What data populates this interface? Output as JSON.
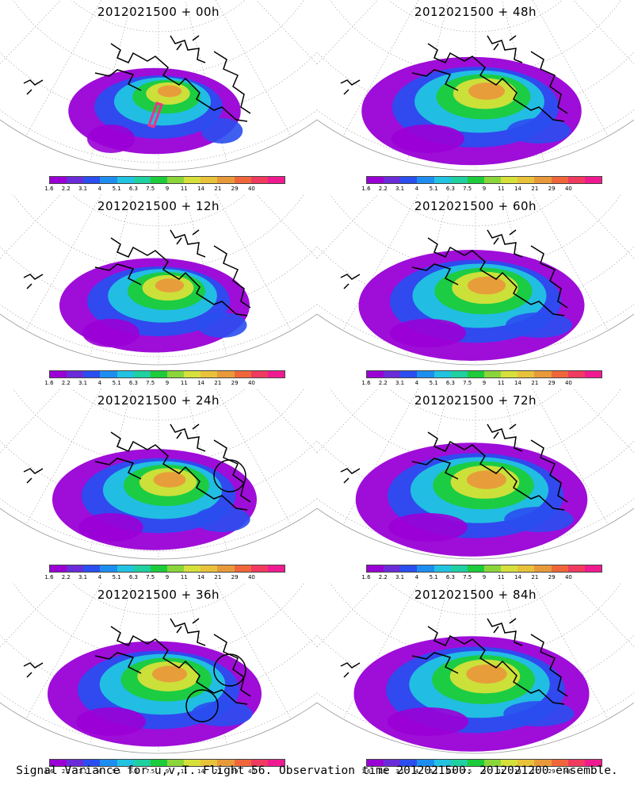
{
  "panels": [
    {
      "title": "2012021500 + 00h",
      "intensity": 0.35,
      "markers": [
        "flight-track"
      ]
    },
    {
      "title": "2012021500 + 48h",
      "intensity": 0.75,
      "markers": []
    },
    {
      "title": "2012021500 + 12h",
      "intensity": 0.5,
      "markers": []
    },
    {
      "title": "2012021500 + 60h",
      "intensity": 0.8,
      "markers": []
    },
    {
      "title": "2012021500 + 24h",
      "intensity": 0.62,
      "markers": [
        "circle"
      ]
    },
    {
      "title": "2012021500 + 72h",
      "intensity": 0.85,
      "markers": []
    },
    {
      "title": "2012021500 + 36h",
      "intensity": 0.7,
      "markers": [
        "circle",
        "circle"
      ]
    },
    {
      "title": "2012021500 + 84h",
      "intensity": 0.88,
      "markers": []
    }
  ],
  "colorbar": {
    "labels": [
      "1.6",
      "2.2",
      "3.1",
      "4",
      "5.1",
      "6.3",
      "7.5",
      "9",
      "11",
      "14",
      "21",
      "29",
      "40"
    ],
    "colors": [
      "#9a00d6",
      "#6a2bd9",
      "#2a4ef0",
      "#1d8ef0",
      "#22c3e0",
      "#1fd0a0",
      "#1ccc3a",
      "#8ad63a",
      "#d6e03a",
      "#e8c23a",
      "#e89a3a",
      "#f0663a",
      "#f03a60",
      "#f01a90"
    ]
  },
  "footer_text": "Signal Variance for u,v,T. Flight 56. Observation time 2012021500. 2012021200 ensemble."
}
